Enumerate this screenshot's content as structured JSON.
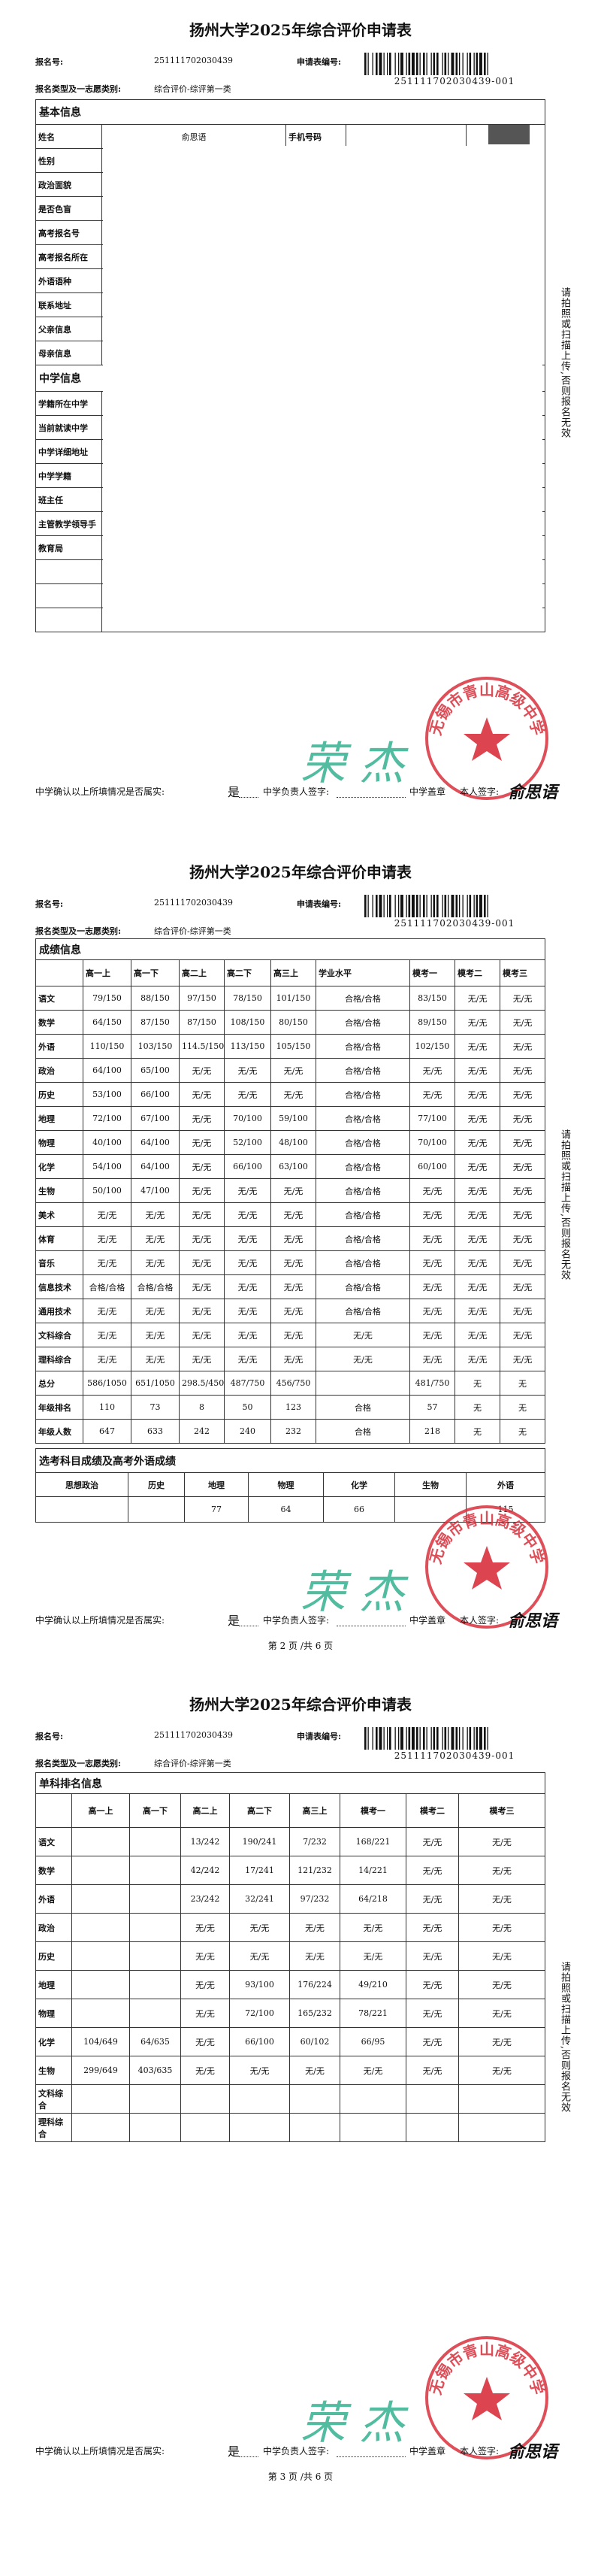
{
  "pages": [
    {
      "header": {
        "title": "扬州大学2025年综合评价申请表",
        "reg_label": "报名号:",
        "reg_no": "251111702030439",
        "form_label": "申请表编号:",
        "form_no": "251111702030439-001",
        "type_label": "报名类型及一志愿类别:",
        "type_value": "综合评价-综评第一类"
      },
      "basic_info": {
        "heading": "基本信息",
        "name_label": "姓名",
        "name": "俞思语",
        "phone_label": "手机号码",
        "labels": [
          "性别",
          "政治面貌",
          "是否色盲",
          "高考报名号",
          "高考报名所在",
          "外语语种",
          "联系地址",
          "父亲信息",
          "母亲信息"
        ]
      },
      "school_info": {
        "heading": "中学信息",
        "labels": [
          "学籍所在中学",
          "当前就读中学",
          "中学详细地址",
          "中学学籍",
          "班主任",
          "主管教学领导手",
          "教育局"
        ]
      },
      "side_note": "请拍照或扫描上传,否则报名无效",
      "confirm": {
        "question": "中学确认以上所填情况是否属实:",
        "answer": "是",
        "principal_label": "中学负责人签字:",
        "principal_sign": "荣杰",
        "seal_label": "中学盖章",
        "self_label": "本人签字:",
        "self_sign": "俞思语",
        "seal_text": "无锡市青山高级中学"
      }
    },
    {
      "header": {
        "title": "扬州大学2025年综合评价申请表",
        "reg_label": "报名号:",
        "reg_no": "251111702030439",
        "form_label": "申请表编号:",
        "form_no": "251111702030439-001",
        "type_label": "报名类型及一志愿类别:",
        "type_value": "综合评价-综评第一类"
      },
      "grades": {
        "heading": "成绩信息",
        "columns": [
          "高一上",
          "高一下",
          "高二上",
          "高二下",
          "高三上",
          "学业水平",
          "模考一",
          "模考二",
          "模考三"
        ],
        "rows": [
          {
            "label": "语文",
            "cells": [
              "79/150",
              "88/150",
              "97/150",
              "78/150",
              "101/150",
              "合格/合格",
              "83/150",
              "无/无",
              "无/无"
            ]
          },
          {
            "label": "数学",
            "cells": [
              "64/150",
              "87/150",
              "87/150",
              "108/150",
              "80/150",
              "合格/合格",
              "89/150",
              "无/无",
              "无/无"
            ]
          },
          {
            "label": "外语",
            "cells": [
              "110/150",
              "103/150",
              "114.5/150",
              "113/150",
              "105/150",
              "合格/合格",
              "102/150",
              "无/无",
              "无/无"
            ]
          },
          {
            "label": "政治",
            "cells": [
              "64/100",
              "65/100",
              "无/无",
              "无/无",
              "无/无",
              "合格/合格",
              "无/无",
              "无/无",
              "无/无"
            ]
          },
          {
            "label": "历史",
            "cells": [
              "53/100",
              "66/100",
              "无/无",
              "无/无",
              "无/无",
              "合格/合格",
              "无/无",
              "无/无",
              "无/无"
            ]
          },
          {
            "label": "地理",
            "cells": [
              "72/100",
              "67/100",
              "无/无",
              "70/100",
              "59/100",
              "合格/合格",
              "77/100",
              "无/无",
              "无/无"
            ]
          },
          {
            "label": "物理",
            "cells": [
              "40/100",
              "64/100",
              "无/无",
              "52/100",
              "48/100",
              "合格/合格",
              "70/100",
              "无/无",
              "无/无"
            ]
          },
          {
            "label": "化学",
            "cells": [
              "54/100",
              "64/100",
              "无/无",
              "66/100",
              "63/100",
              "合格/合格",
              "60/100",
              "无/无",
              "无/无"
            ]
          },
          {
            "label": "生物",
            "cells": [
              "50/100",
              "47/100",
              "无/无",
              "无/无",
              "无/无",
              "合格/合格",
              "无/无",
              "无/无",
              "无/无"
            ]
          },
          {
            "label": "美术",
            "cells": [
              "无/无",
              "无/无",
              "无/无",
              "无/无",
              "无/无",
              "合格/合格",
              "无/无",
              "无/无",
              "无/无"
            ]
          },
          {
            "label": "体育",
            "cells": [
              "无/无",
              "无/无",
              "无/无",
              "无/无",
              "无/无",
              "合格/合格",
              "无/无",
              "无/无",
              "无/无"
            ]
          },
          {
            "label": "音乐",
            "cells": [
              "无/无",
              "无/无",
              "无/无",
              "无/无",
              "无/无",
              "合格/合格",
              "无/无",
              "无/无",
              "无/无"
            ]
          },
          {
            "label": "信息技术",
            "cells": [
              "合格/合格",
              "合格/合格",
              "无/无",
              "无/无",
              "无/无",
              "合格/合格",
              "无/无",
              "无/无",
              "无/无"
            ]
          },
          {
            "label": "通用技术",
            "cells": [
              "无/无",
              "无/无",
              "无/无",
              "无/无",
              "无/无",
              "合格/合格",
              "无/无",
              "无/无",
              "无/无"
            ]
          },
          {
            "label": "文科综合",
            "cells": [
              "无/无",
              "无/无",
              "无/无",
              "无/无",
              "无/无",
              "无/无",
              "无/无",
              "无/无",
              "无/无"
            ]
          },
          {
            "label": "理科综合",
            "cells": [
              "无/无",
              "无/无",
              "无/无",
              "无/无",
              "无/无",
              "无/无",
              "无/无",
              "无/无",
              "无/无"
            ]
          },
          {
            "label": "总分",
            "cells": [
              "586/1050",
              "651/1050",
              "298.5/450",
              "487/750",
              "456/750",
              null,
              "481/750",
              "无",
              "无"
            ]
          },
          {
            "label": "年级排名",
            "cells": [
              110,
              73,
              8,
              50,
              123,
              "合格",
              57,
              "无",
              "无"
            ]
          },
          {
            "label": "年级人数",
            "cells": [
              647,
              633,
              242,
              240,
              232,
              "合格",
              218,
              "无",
              "无"
            ]
          }
        ]
      },
      "elective": {
        "heading": "选考科目成绩及高考外语成绩",
        "columns": [
          "思想政治",
          "历史",
          "地理",
          "物理",
          "化学",
          "生物",
          "外语"
        ],
        "values": [
          null,
          null,
          77,
          64,
          66,
          null,
          115
        ]
      },
      "side_note": "请拍照或扫描上传,否则报名无效",
      "confirm": {
        "question": "中学确认以上所填情况是否属实:",
        "answer": "是",
        "principal_label": "中学负责人签字:",
        "principal_sign": "荣杰",
        "seal_label": "中学盖章",
        "self_label": "本人签字:",
        "self_sign": "俞思语",
        "seal_text": "无锡市青山高级中学"
      },
      "page_no": "第 2 页 /共 6 页"
    },
    {
      "header": {
        "title": "扬州大学2025年综合评价申请表",
        "reg_label": "报名号:",
        "reg_no": "251111702030439",
        "form_label": "申请表编号:",
        "form_no": "251111702030439-001",
        "type_label": "报名类型及一志愿类别:",
        "type_value": "综合评价-综评第一类"
      },
      "ranks": {
        "heading": "单科排名信息",
        "columns": [
          "高一上",
          "高一下",
          "高二上",
          "高二下",
          "高三上",
          "模考一",
          "模考二",
          "模考三"
        ],
        "rows": [
          {
            "label": "语文",
            "cells": [
              null,
              null,
              "13/242",
              "190/241",
              "7/232",
              "168/221",
              "无/无",
              "无/无"
            ]
          },
          {
            "label": "数学",
            "cells": [
              null,
              null,
              "42/242",
              "17/241",
              "121/232",
              "14/221",
              "无/无",
              "无/无"
            ]
          },
          {
            "label": "外语",
            "cells": [
              null,
              null,
              "23/242",
              "32/241",
              "97/232",
              "64/218",
              "无/无",
              "无/无"
            ]
          },
          {
            "label": "政治",
            "cells": [
              null,
              null,
              "无/无",
              "无/无",
              "无/无",
              "无/无",
              "无/无",
              "无/无"
            ]
          },
          {
            "label": "历史",
            "cells": [
              null,
              null,
              "无/无",
              "无/无",
              "无/无",
              "无/无",
              "无/无",
              "无/无"
            ]
          },
          {
            "label": "地理",
            "cells": [
              null,
              null,
              "无/无",
              "93/100",
              "176/224",
              "49/210",
              "无/无",
              "无/无"
            ]
          },
          {
            "label": "物理",
            "cells": [
              null,
              null,
              "无/无",
              "72/100",
              "165/232",
              "78/221",
              "无/无",
              "无/无"
            ]
          },
          {
            "label": "化学",
            "cells": [
              "104/649",
              "64/635",
              "无/无",
              "66/100",
              "60/102",
              "66/95",
              "无/无",
              "无/无"
            ]
          },
          {
            "label": "生物",
            "cells": [
              "299/649",
              "403/635",
              "无/无",
              "无/无",
              "无/无",
              "无/无",
              "无/无",
              "无/无"
            ]
          },
          {
            "label": "文科综合",
            "cells": [
              null,
              null,
              null,
              null,
              null,
              null,
              null,
              null
            ]
          },
          {
            "label": "理科综合",
            "cells": [
              null,
              null,
              null,
              null,
              null,
              null,
              null,
              null
            ]
          }
        ]
      },
      "side_note": "请拍照或扫描上传,否则报名无效",
      "confirm": {
        "question": "中学确认以上所填情况是否属实:",
        "answer": "是",
        "principal_label": "中学负责人签字:",
        "principal_sign": "荣杰",
        "seal_label": "中学盖章",
        "self_label": "本人签字:",
        "self_sign": "俞思语",
        "seal_text": "无锡市青山高级中学"
      },
      "page_no": "第 3 页 /共 6 页"
    }
  ]
}
